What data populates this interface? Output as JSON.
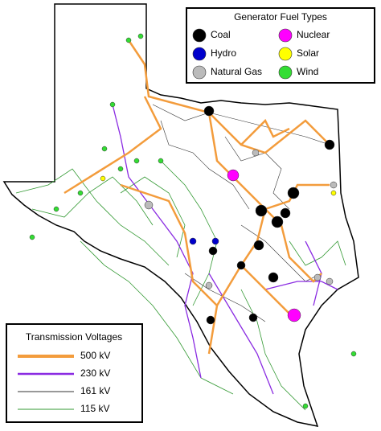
{
  "legend_fuel": {
    "title": "Generator Fuel Types",
    "items": [
      {
        "label": "Coal",
        "color": "#000000"
      },
      {
        "label": "Nuclear",
        "color": "#ff00ff"
      },
      {
        "label": "Hydro",
        "color": "#0000cc"
      },
      {
        "label": "Solar",
        "color": "#ffff00"
      },
      {
        "label": "Natural Gas",
        "color": "#bbbbbb"
      },
      {
        "label": "Wind",
        "color": "#33dd33"
      }
    ]
  },
  "legend_voltage": {
    "title": "Transmission Voltages",
    "items": [
      {
        "label": "500 kV",
        "color": "#f39c3c"
      },
      {
        "label": "230 kV",
        "color": "#8a2be2"
      },
      {
        "label": "161 kV",
        "color": "#333333"
      },
      {
        "label": "115 kV",
        "color": "#339933"
      }
    ]
  }
}
